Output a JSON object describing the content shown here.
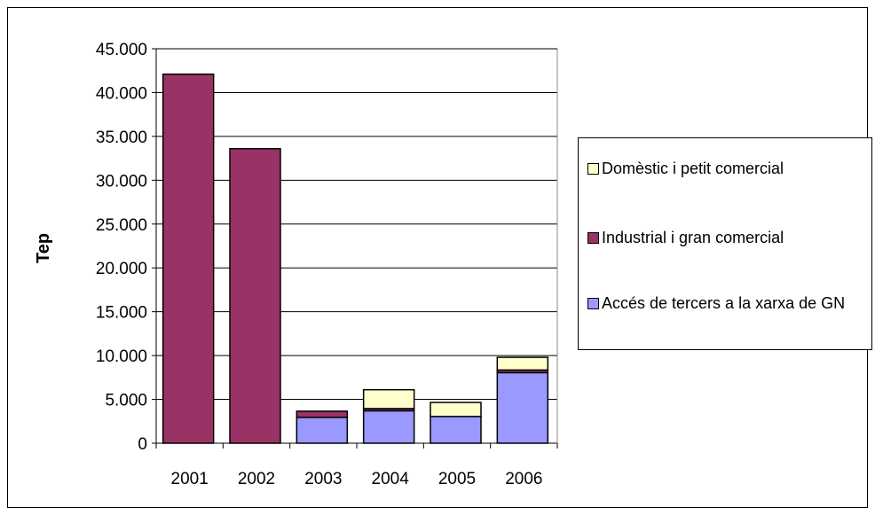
{
  "chart_data": {
    "type": "bar",
    "stacked": true,
    "ylabel": "Tep",
    "ylim": [
      0,
      45000
    ],
    "ytick_step": 5000,
    "yticks": [
      "0",
      "5.000",
      "10.000",
      "15.000",
      "20.000",
      "25.000",
      "30.000",
      "35.000",
      "40.000",
      "45.000"
    ],
    "categories": [
      "2001",
      "2002",
      "2003",
      "2004",
      "2005",
      "2006"
    ],
    "grid": true,
    "legend_position": "right",
    "series": [
      {
        "name": "Accés de tercers a la xarxa de GN",
        "color": "#9999ff",
        "values": [
          0,
          0,
          2950,
          3700,
          3050,
          8050
        ]
      },
      {
        "name": "Industrial i gran comercial",
        "color": "#993366",
        "values": [
          42100,
          33600,
          700,
          250,
          0,
          300
        ]
      },
      {
        "name": "Domèstic i petit comercial",
        "color": "#ffffcc",
        "values": [
          0,
          0,
          0,
          2150,
          1600,
          1450
        ]
      }
    ]
  },
  "legend": {
    "items": [
      {
        "label": "Domèstic i petit comercial",
        "color": "#ffffcc"
      },
      {
        "label": "Industrial i gran comercial",
        "color": "#993366"
      },
      {
        "label": "Accés de tercers a la xarxa de GN",
        "color": "#9999ff"
      }
    ]
  }
}
